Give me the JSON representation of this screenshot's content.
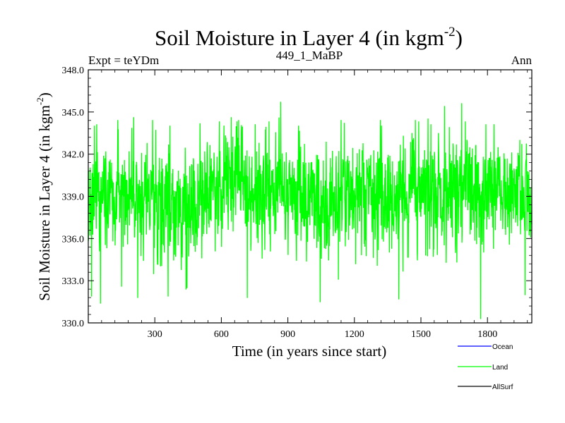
{
  "chart_data": {
    "type": "line",
    "title_main": "Soil Moisture in Layer 4 (in kgm",
    "title_sup": "-2",
    "title_close": ")",
    "subtitle_left": "Expt = teYDm",
    "subtitle_center": "449_1_MaBP",
    "subtitle_right": "Ann",
    "xlabel": "Time (in years since start)",
    "ylabel_main": "Soil Moisture in Layer 4 (in kgm",
    "ylabel_sup": "-2",
    "ylabel_close": ")",
    "xlim": [
      0,
      2000
    ],
    "ylim": [
      330.0,
      348.0
    ],
    "xticks": [
      300,
      600,
      900,
      1200,
      1500,
      1800
    ],
    "xtick_labels": [
      "300",
      "600",
      "900",
      "1200",
      "1500",
      "1800"
    ],
    "yticks": [
      330.0,
      333.0,
      336.0,
      339.0,
      342.0,
      345.0,
      348.0
    ],
    "ytick_labels": [
      "330.0",
      "333.0",
      "336.0",
      "339.0",
      "342.0",
      "345.0",
      "348.0"
    ],
    "series": [
      {
        "name": "Land",
        "color": "#00ff00",
        "x_start": 1,
        "x_end": 2000,
        "mean": 339.0,
        "mean_profile": [
          [
            0,
            339.0
          ],
          [
            100,
            338.9
          ],
          [
            200,
            338.9
          ],
          [
            300,
            338.7
          ],
          [
            400,
            338.3
          ],
          [
            470,
            338.1
          ],
          [
            550,
            339.2
          ],
          [
            650,
            339.8
          ],
          [
            750,
            339.4
          ],
          [
            850,
            339.3
          ],
          [
            950,
            339.1
          ],
          [
            1050,
            338.8
          ],
          [
            1150,
            339.0
          ],
          [
            1250,
            339.1
          ],
          [
            1400,
            339.0
          ],
          [
            1550,
            339.1
          ],
          [
            1700,
            339.2
          ],
          [
            1850,
            339.1
          ],
          [
            2000,
            339.0
          ]
        ],
        "std": 1.8,
        "min": 330.3,
        "max": 345.7,
        "extremes": [
          [
            15,
            331.9
          ],
          [
            28,
            344.0
          ],
          [
            38,
            344.1
          ],
          [
            55,
            331.4
          ],
          [
            133,
            344.4
          ],
          [
            150,
            332.6
          ],
          [
            205,
            344.6
          ],
          [
            223,
            331.8
          ],
          [
            290,
            344.4
          ],
          [
            295,
            333.5
          ],
          [
            360,
            331.9
          ],
          [
            368,
            344.0
          ],
          [
            441,
            332.4
          ],
          [
            445,
            332.5
          ],
          [
            591,
            344.3
          ],
          [
            645,
            344.6
          ],
          [
            671,
            344.3
          ],
          [
            678,
            344.4
          ],
          [
            717,
            331.8
          ],
          [
            753,
            344.1
          ],
          [
            815,
            344.3
          ],
          [
            868,
            345.7
          ],
          [
            948,
            344.0
          ],
          [
            1046,
            331.5
          ],
          [
            1128,
            333.1
          ],
          [
            1140,
            344.4
          ],
          [
            1155,
            344.2
          ],
          [
            1206,
            334.2
          ],
          [
            1317,
            344.4
          ],
          [
            1322,
            344.0
          ],
          [
            1400,
            331.7
          ],
          [
            1475,
            344.4
          ],
          [
            1490,
            344.3
          ],
          [
            1545,
            344.1
          ],
          [
            1607,
            345.4
          ],
          [
            1628,
            343.9
          ],
          [
            1684,
            345.6
          ],
          [
            1700,
            344.3
          ],
          [
            1769,
            330.3
          ],
          [
            1793,
            344.1
          ],
          [
            1830,
            344.1
          ],
          [
            1970,
            332.0
          ]
        ]
      }
    ],
    "legend": [
      {
        "label": "Ocean",
        "color": "#0000ff"
      },
      {
        "label": "Land",
        "color": "#00ff00"
      },
      {
        "label": "AllSurf",
        "color": "#000000"
      }
    ]
  }
}
